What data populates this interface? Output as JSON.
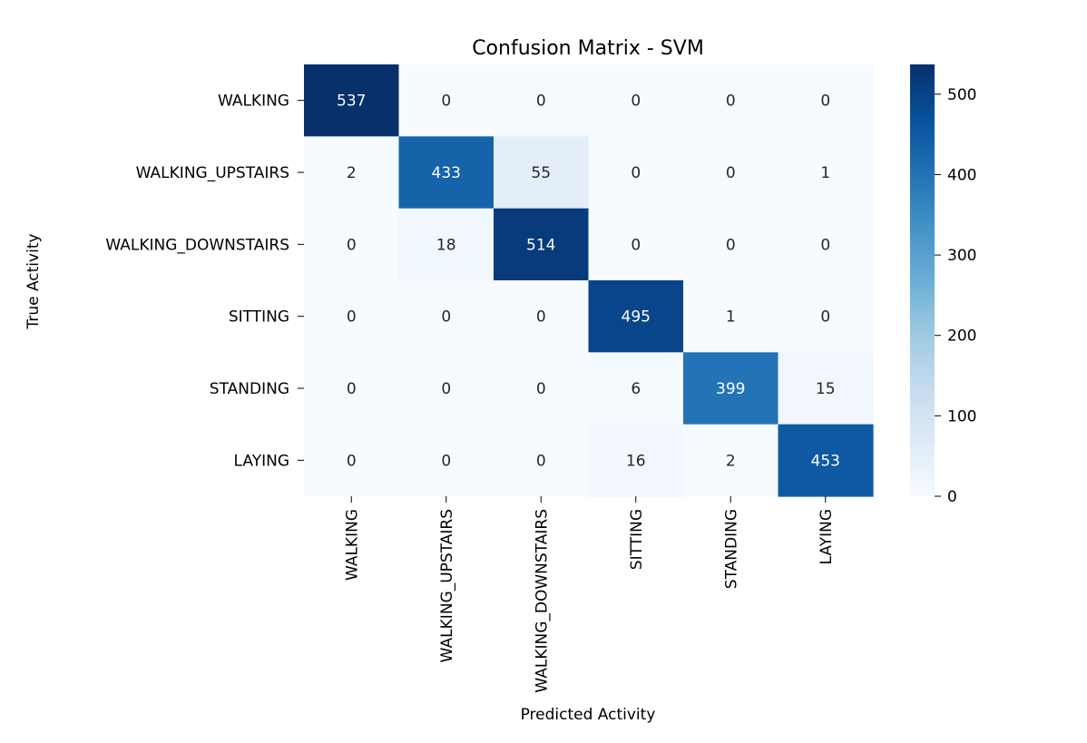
{
  "chart_data": {
    "type": "heatmap",
    "title": "Confusion Matrix - SVM",
    "xlabel": "Predicted Activity",
    "ylabel": "True Activity",
    "x_categories": [
      "WALKING",
      "WALKING_UPSTAIRS",
      "WALKING_DOWNSTAIRS",
      "SITTING",
      "STANDING",
      "LAYING"
    ],
    "y_categories": [
      "WALKING",
      "WALKING_UPSTAIRS",
      "WALKING_DOWNSTAIRS",
      "SITTING",
      "STANDING",
      "LAYING"
    ],
    "values": [
      [
        537,
        0,
        0,
        0,
        0,
        0
      ],
      [
        2,
        433,
        55,
        0,
        0,
        1
      ],
      [
        0,
        18,
        514,
        0,
        0,
        0
      ],
      [
        0,
        0,
        0,
        495,
        1,
        0
      ],
      [
        0,
        0,
        0,
        6,
        399,
        15
      ],
      [
        0,
        0,
        0,
        16,
        2,
        453
      ]
    ],
    "colorbar": {
      "min": 0,
      "max": 537,
      "ticks": [
        0,
        100,
        200,
        300,
        400,
        500
      ],
      "colormap": "Blues",
      "low_color": "#f7fbff",
      "high_color": "#08306b"
    },
    "grid": false
  }
}
